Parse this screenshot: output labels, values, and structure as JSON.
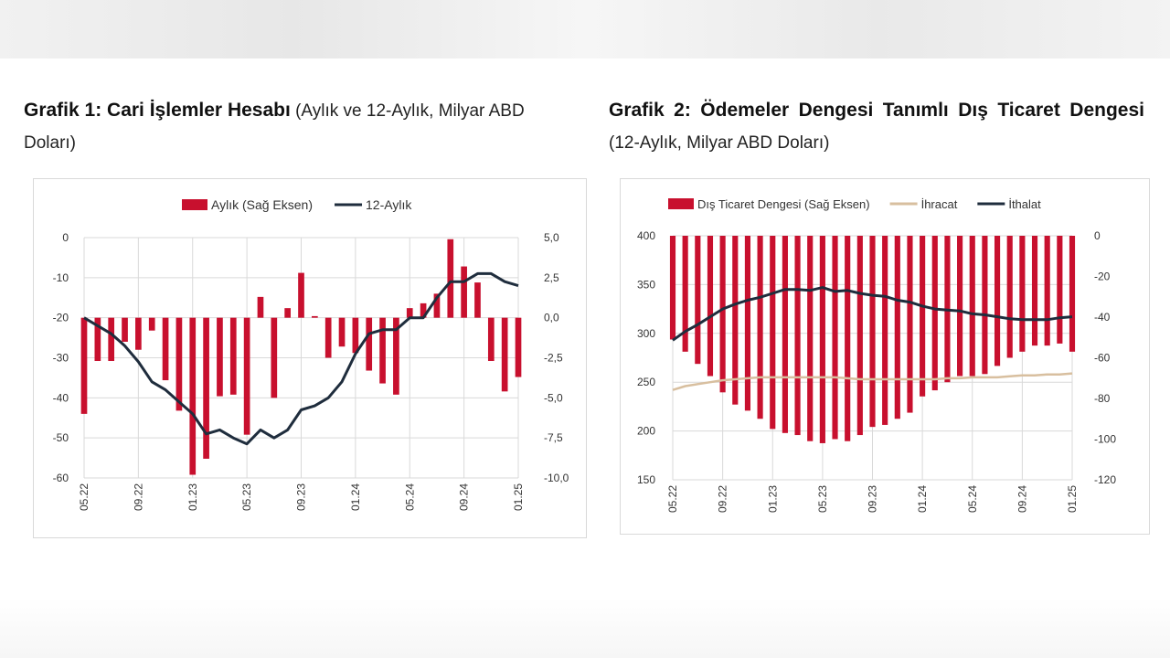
{
  "titles": [
    {
      "bold": "Grafik 1: Cari İşlemler Hesabı",
      "sub": " (Aylık ve 12-Aylık, Milyar ABD Doları)"
    },
    {
      "bold": "Grafik 2: Ödemeler Dengesi Tanımlı Dış Ticaret Dengesi",
      "sub": " (12-Aylık, Milyar ABD Doları)"
    }
  ],
  "colors": {
    "bar": "#c8102e",
    "line_dark": "#1f2d3d",
    "line_tan": "#d8bf9f",
    "grid": "#d9d9d9"
  },
  "chart_data": [
    {
      "type": "bar+line",
      "title": "Grafik 1: Cari İşlemler Hesabı",
      "legend": [
        "Aylık (Sağ Eksen)",
        "12-Aylık"
      ],
      "categories": [
        "05.22",
        "06.22",
        "07.22",
        "08.22",
        "09.22",
        "10.22",
        "11.22",
        "12.22",
        "01.23",
        "02.23",
        "03.23",
        "04.23",
        "05.23",
        "06.23",
        "07.23",
        "08.23",
        "09.23",
        "10.23",
        "11.23",
        "12.23",
        "01.24",
        "02.24",
        "03.24",
        "04.24",
        "05.24",
        "06.24",
        "07.24",
        "08.24",
        "09.24",
        "10.24",
        "11.24",
        "12.24",
        "01.25"
      ],
      "tick_labels": [
        "05.22",
        "09.22",
        "01.23",
        "05.23",
        "09.23",
        "01.24",
        "05.24",
        "09.24",
        "01.25"
      ],
      "left_axis": {
        "min": -60,
        "max": 0,
        "ticks": [
          "0",
          "-10",
          "-20",
          "-30",
          "-40",
          "-50",
          "-60"
        ]
      },
      "right_axis": {
        "min": -10,
        "max": 5,
        "ticks": [
          "5,0",
          "2,5",
          "0,0",
          "-2,5",
          "-5,0",
          "-7,5",
          "-10,0"
        ]
      },
      "series": [
        {
          "name": "Aylık (Sağ Eksen)",
          "axis": "right",
          "kind": "bar",
          "values": [
            -6.0,
            -2.7,
            -2.7,
            -1.5,
            -2.0,
            -0.8,
            -3.9,
            -5.8,
            -9.8,
            -8.8,
            -4.9,
            -4.8,
            -7.3,
            1.3,
            -5.0,
            0.6,
            2.8,
            0.1,
            -2.5,
            -1.8,
            -2.2,
            -3.3,
            -4.1,
            -4.8,
            0.6,
            0.9,
            1.5,
            4.9,
            3.2,
            2.2,
            -2.7,
            -4.6,
            -3.7
          ]
        },
        {
          "name": "12-Aylık",
          "axis": "left",
          "kind": "line",
          "values": [
            -20,
            -22,
            -24,
            -27,
            -31,
            -36,
            -38,
            -41,
            -44,
            -49,
            -48,
            -50,
            -51.5,
            -48,
            -50,
            -48,
            -43,
            -42,
            -40,
            -36,
            -29,
            -24,
            -23,
            -23,
            -20,
            -20,
            -15,
            -11,
            -11,
            -9,
            -9,
            -11,
            -12
          ]
        }
      ]
    },
    {
      "type": "bar+line",
      "title": "Grafik 2: Ödemeler Dengesi Tanımlı Dış Ticaret Dengesi",
      "legend": [
        "Dış Ticaret Dengesi (Sağ Eksen)",
        "İhracat",
        "İthalat"
      ],
      "categories": [
        "05.22",
        "06.22",
        "07.22",
        "08.22",
        "09.22",
        "10.22",
        "11.22",
        "12.22",
        "01.23",
        "02.23",
        "03.23",
        "04.23",
        "05.23",
        "06.23",
        "07.23",
        "08.23",
        "09.23",
        "10.23",
        "11.23",
        "12.23",
        "01.24",
        "02.24",
        "03.24",
        "04.24",
        "05.24",
        "06.24",
        "07.24",
        "08.24",
        "09.24",
        "10.24",
        "11.24",
        "12.24",
        "01.25"
      ],
      "tick_labels": [
        "05.22",
        "09.22",
        "01.23",
        "05.23",
        "09.23",
        "01.24",
        "05.24",
        "09.24",
        "01.25"
      ],
      "left_axis": {
        "min": 150,
        "max": 400,
        "ticks": [
          "400",
          "350",
          "300",
          "250",
          "200",
          "150"
        ]
      },
      "right_axis": {
        "min": -120,
        "max": 0,
        "ticks": [
          "0",
          "-20",
          "-40",
          "-60",
          "-80",
          "-100",
          "-120"
        ]
      },
      "series": [
        {
          "name": "Dış Ticaret Dengesi (Sağ Eksen)",
          "axis": "right",
          "kind": "bar",
          "values": [
            -51,
            -57,
            -63,
            -69,
            -77,
            -83,
            -86,
            -90,
            -95,
            -97,
            -98,
            -101,
            -102,
            -100,
            -101,
            -98,
            -94,
            -93,
            -90,
            -87,
            -79,
            -76,
            -72,
            -69,
            -69,
            -68,
            -64,
            -60,
            -57,
            -54,
            -54,
            -53,
            -57
          ]
        },
        {
          "name": "İhracat",
          "axis": "left",
          "kind": "line",
          "values": [
            242,
            246,
            248,
            250,
            252,
            253,
            254,
            255,
            255,
            255,
            255,
            255,
            255,
            255,
            254,
            253,
            253,
            253,
            253,
            253,
            253,
            253,
            254,
            254,
            255,
            255,
            255,
            256,
            257,
            257,
            258,
            258,
            259
          ]
        },
        {
          "name": "İthalat",
          "axis": "left",
          "kind": "line",
          "values": [
            293,
            302,
            309,
            317,
            325,
            330,
            334,
            337,
            341,
            345,
            345,
            344,
            347,
            343,
            344,
            341,
            339,
            338,
            334,
            332,
            328,
            325,
            324,
            323,
            320,
            319,
            317,
            315,
            314,
            314,
            314,
            316,
            317
          ]
        }
      ]
    }
  ]
}
